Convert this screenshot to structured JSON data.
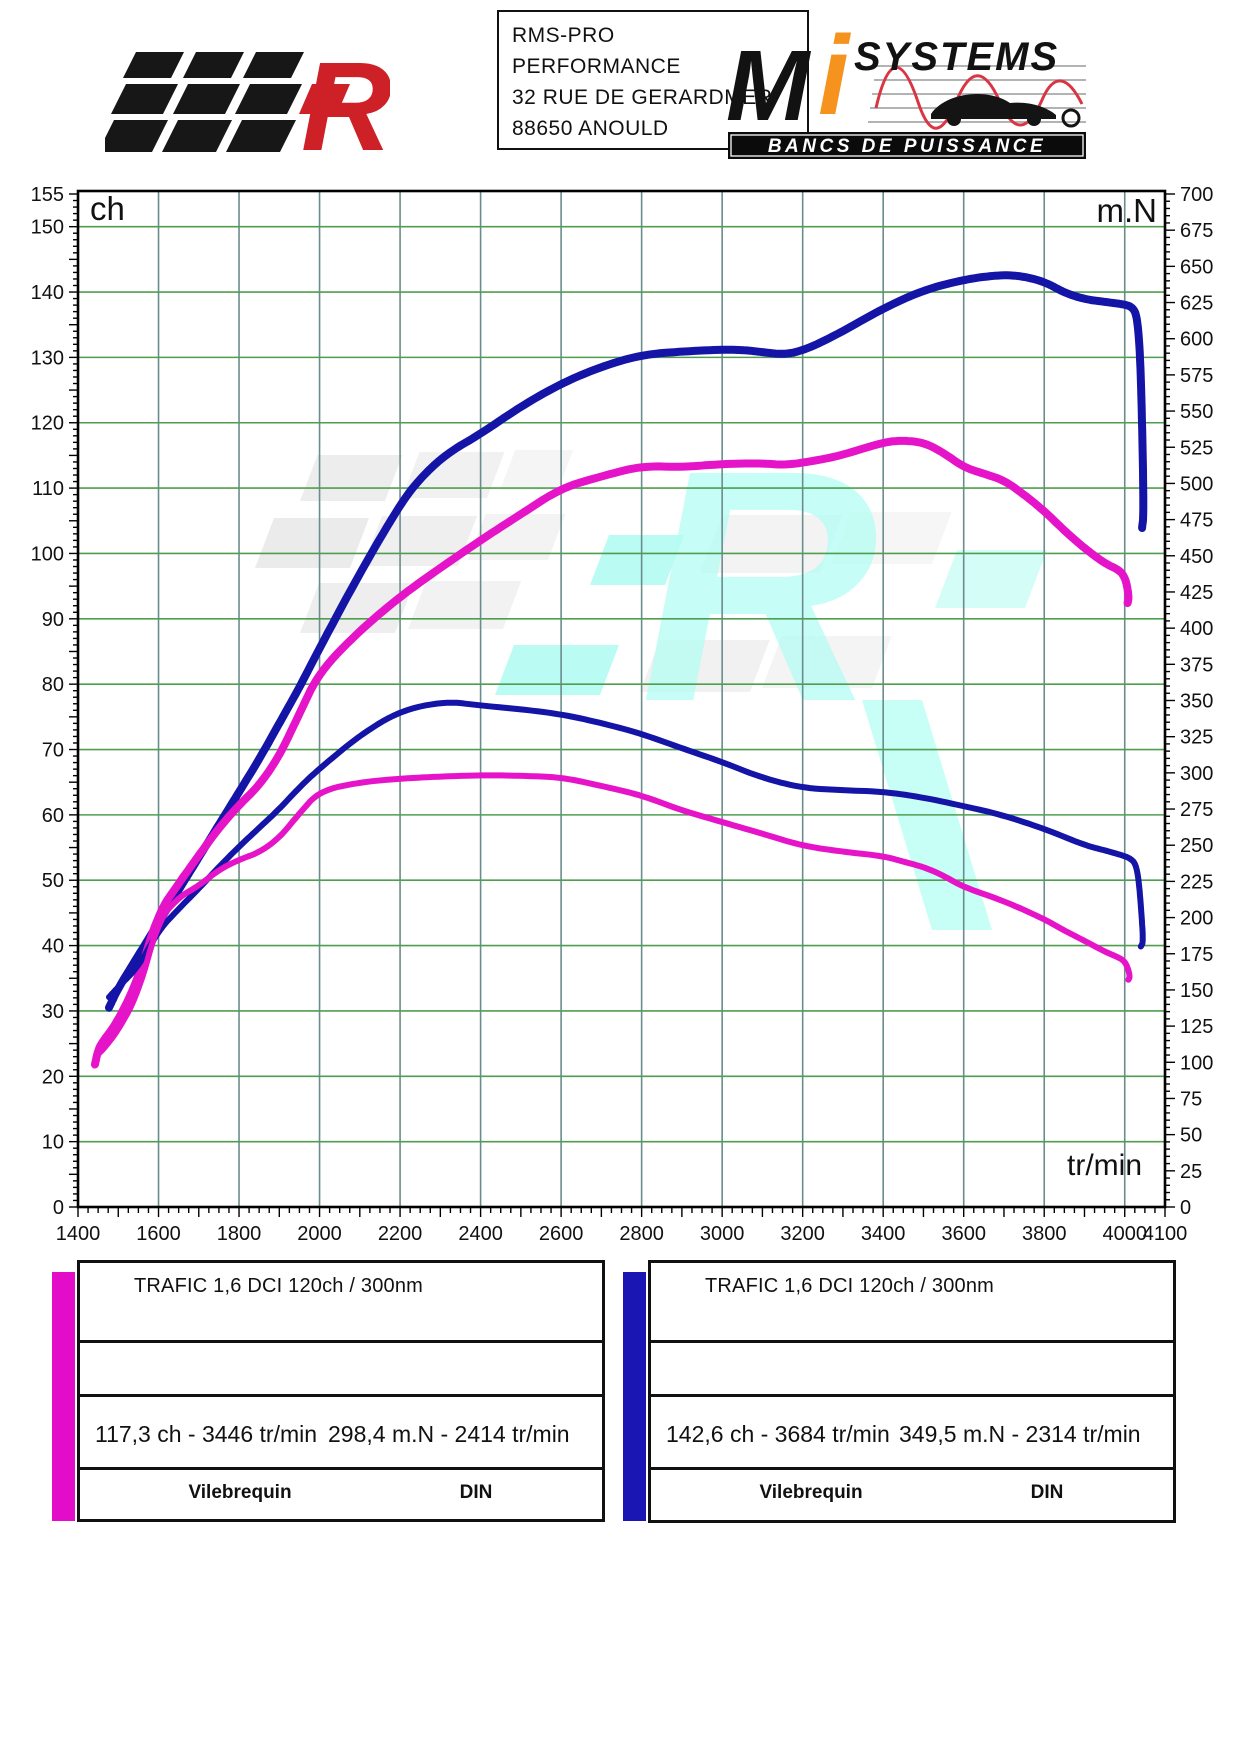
{
  "header": {
    "left_logo": {
      "letter": "R"
    },
    "shop_box": {
      "lines": [
        "RMS-PRO",
        "PERFORMANCE",
        "32 RUE DE GERARDMER",
        "88650 ANOULD"
      ]
    },
    "right_logo": {
      "m": "M",
      "i": "i",
      "systems": "SYSTEMS",
      "banner": "BANCS DE PUISSANCE"
    }
  },
  "chart_data": {
    "type": "line",
    "x_axis": {
      "label": "tr/min",
      "min": 1400,
      "max": 4100,
      "major_ticks": [
        1400,
        1600,
        1800,
        2000,
        2200,
        2400,
        2600,
        2800,
        3000,
        3200,
        3400,
        3600,
        3800,
        4000,
        4100
      ],
      "minor_step": 25,
      "gridline_step": 200
    },
    "y_left": {
      "label": "ch",
      "min": 0,
      "max": 155,
      "labeled_ticks": [
        0,
        10,
        20,
        30,
        40,
        50,
        60,
        70,
        80,
        90,
        100,
        110,
        120,
        130,
        140,
        150,
        155
      ],
      "minor_step": 1,
      "gridline_step": 10
    },
    "y_right": {
      "label": "m.N",
      "min": 0,
      "max": 700,
      "labeled_ticks": [
        0,
        25,
        50,
        75,
        100,
        125,
        150,
        175,
        200,
        225,
        250,
        275,
        300,
        325,
        350,
        375,
        400,
        425,
        450,
        475,
        500,
        525,
        550,
        575,
        600,
        625,
        650,
        675,
        700
      ],
      "minor_step": 5
    },
    "grid": {
      "h_color": "#4f9e4f",
      "v_color": "#6b8c8c",
      "frame_color": "#000000"
    },
    "legend_position": "none",
    "series": [
      {
        "name": "power-run-blue",
        "unit": "ch",
        "axis": "left",
        "color": "#1414A6",
        "width": 8,
        "peak": "142,6 ch - 3684 tr/min",
        "points": [
          [
            1477,
            30.5
          ],
          [
            1500,
            33.5
          ],
          [
            1550,
            38.5
          ],
          [
            1600,
            43.5
          ],
          [
            1650,
            48.5
          ],
          [
            1700,
            53.5
          ],
          [
            1750,
            58.5
          ],
          [
            1800,
            63.5
          ],
          [
            1850,
            68.5
          ],
          [
            1900,
            74
          ],
          [
            1950,
            79.5
          ],
          [
            2000,
            85.5
          ],
          [
            2100,
            97
          ],
          [
            2200,
            107.5
          ],
          [
            2250,
            111.5
          ],
          [
            2314,
            115.2
          ],
          [
            2400,
            118.3
          ],
          [
            2500,
            122.5
          ],
          [
            2600,
            126
          ],
          [
            2700,
            128.6
          ],
          [
            2800,
            130.4
          ],
          [
            2900,
            130.9
          ],
          [
            3000,
            131.2
          ],
          [
            3060,
            131.1
          ],
          [
            3100,
            130.8
          ],
          [
            3160,
            130.4
          ],
          [
            3220,
            131.5
          ],
          [
            3300,
            134
          ],
          [
            3400,
            137.5
          ],
          [
            3500,
            140.3
          ],
          [
            3600,
            141.9
          ],
          [
            3684,
            142.6
          ],
          [
            3740,
            142.5
          ],
          [
            3800,
            141.6
          ],
          [
            3850,
            139.9
          ],
          [
            3900,
            138.9
          ],
          [
            3950,
            138.5
          ],
          [
            4000,
            138.1
          ],
          [
            4018,
            137.7
          ],
          [
            4030,
            136.5
          ],
          [
            4038,
            131
          ],
          [
            4044,
            118
          ],
          [
            4047,
            106
          ],
          [
            4043,
            103.9
          ]
        ]
      },
      {
        "name": "power-run-magenta",
        "unit": "ch",
        "axis": "left",
        "color": "#E514C9",
        "width": 8,
        "peak": "117,3 ch - 3446 tr/min",
        "points": [
          [
            1442,
            21.8
          ],
          [
            1450,
            24
          ],
          [
            1460,
            25.2
          ],
          [
            1500,
            28.5
          ],
          [
            1550,
            35
          ],
          [
            1600,
            45
          ],
          [
            1650,
            49.5
          ],
          [
            1700,
            53.8
          ],
          [
            1750,
            58
          ],
          [
            1800,
            61.5
          ],
          [
            1850,
            64.5
          ],
          [
            1900,
            69
          ],
          [
            1950,
            75.5
          ],
          [
            2000,
            81.9
          ],
          [
            2100,
            88.2
          ],
          [
            2200,
            93.4
          ],
          [
            2300,
            97.8
          ],
          [
            2414,
            102.6
          ],
          [
            2500,
            106
          ],
          [
            2600,
            110
          ],
          [
            2700,
            111.8
          ],
          [
            2800,
            113.4
          ],
          [
            2900,
            113.2
          ],
          [
            3000,
            113.7
          ],
          [
            3100,
            113.8
          ],
          [
            3160,
            113.5
          ],
          [
            3250,
            114.4
          ],
          [
            3300,
            115.1
          ],
          [
            3400,
            117
          ],
          [
            3446,
            117.3
          ],
          [
            3500,
            117
          ],
          [
            3550,
            115.4
          ],
          [
            3600,
            113.2
          ],
          [
            3650,
            112.2
          ],
          [
            3700,
            111.2
          ],
          [
            3750,
            109
          ],
          [
            3800,
            106.5
          ],
          [
            3850,
            103.5
          ],
          [
            3900,
            100.8
          ],
          [
            3950,
            98.5
          ],
          [
            3988,
            97.4
          ],
          [
            4000,
            96.3
          ],
          [
            4006,
            95
          ],
          [
            4010,
            93.2
          ],
          [
            4007,
            92.4
          ]
        ]
      },
      {
        "name": "torque-run-blue",
        "unit": "m.N",
        "axis": "right",
        "color": "#1414A6",
        "width": 6,
        "peak": "349,5 m.N - 2314 tr/min",
        "points": [
          [
            1477,
            145
          ],
          [
            1500,
            152
          ],
          [
            1550,
            166
          ],
          [
            1600,
            191
          ],
          [
            1650,
            206
          ],
          [
            1700,
            220
          ],
          [
            1750,
            235
          ],
          [
            1800,
            249
          ],
          [
            1850,
            262
          ],
          [
            1900,
            275
          ],
          [
            1950,
            290
          ],
          [
            2000,
            303
          ],
          [
            2100,
            326
          ],
          [
            2200,
            343
          ],
          [
            2314,
            349.5
          ],
          [
            2400,
            346.5
          ],
          [
            2500,
            344
          ],
          [
            2600,
            340.5
          ],
          [
            2700,
            334.5
          ],
          [
            2800,
            327
          ],
          [
            2900,
            317
          ],
          [
            3000,
            307.5
          ],
          [
            3100,
            296.5
          ],
          [
            3200,
            289.5
          ],
          [
            3300,
            288
          ],
          [
            3400,
            287
          ],
          [
            3500,
            283
          ],
          [
            3600,
            277
          ],
          [
            3684,
            271.8
          ],
          [
            3800,
            261.5
          ],
          [
            3900,
            250
          ],
          [
            3950,
            246.5
          ],
          [
            4000,
            242.5
          ],
          [
            4015,
            240.5
          ],
          [
            4026,
            237.5
          ],
          [
            4034,
            228
          ],
          [
            4041,
            205
          ],
          [
            4046,
            183
          ],
          [
            4040,
            180
          ]
        ]
      },
      {
        "name": "torque-run-magenta",
        "unit": "m.N",
        "axis": "right",
        "color": "#E514C9",
        "width": 6,
        "peak": "298,4 m.N - 2414 tr/min",
        "points": [
          [
            1442,
            99
          ],
          [
            1450,
            106
          ],
          [
            1460,
            108
          ],
          [
            1500,
            122
          ],
          [
            1550,
            148
          ],
          [
            1600,
            198
          ],
          [
            1650,
            214
          ],
          [
            1700,
            222
          ],
          [
            1750,
            233
          ],
          [
            1800,
            240
          ],
          [
            1850,
            245
          ],
          [
            1900,
            255
          ],
          [
            1950,
            272
          ],
          [
            2000,
            287.5
          ],
          [
            2100,
            293.5
          ],
          [
            2200,
            296
          ],
          [
            2300,
            297.5
          ],
          [
            2414,
            298.4
          ],
          [
            2500,
            298
          ],
          [
            2600,
            297
          ],
          [
            2700,
            291
          ],
          [
            2800,
            284.5
          ],
          [
            2900,
            274
          ],
          [
            3000,
            266
          ],
          [
            3100,
            258
          ],
          [
            3200,
            249.5
          ],
          [
            3300,
            245.5
          ],
          [
            3400,
            242.5
          ],
          [
            3446,
            239
          ],
          [
            3500,
            235
          ],
          [
            3550,
            229
          ],
          [
            3600,
            221
          ],
          [
            3700,
            211.5
          ],
          [
            3800,
            199
          ],
          [
            3850,
            191
          ],
          [
            3900,
            184
          ],
          [
            3950,
            176.5
          ],
          [
            3988,
            172
          ],
          [
            4000,
            169.5
          ],
          [
            4008,
            165
          ],
          [
            4013,
            159
          ],
          [
            4009,
            157
          ]
        ]
      }
    ]
  },
  "results": {
    "left": {
      "swatch_color": "#E30CC8",
      "title": "TRAFIC 1,6 DCI 120ch / 300nm",
      "power": "117,3 ch - 3446 tr/min",
      "torque": "298,4 m.N - 2414 tr/min",
      "footer_left": "Vilebrequin",
      "footer_right": "DIN"
    },
    "right": {
      "swatch_color": "#1A16B4",
      "title": "TRAFIC 1,6 DCI 120ch / 300nm",
      "power": "142,6 ch - 3684 tr/min",
      "torque": "349,5 m.N - 2314 tr/min",
      "footer_left": "Vilebrequin",
      "footer_right": "DIN"
    }
  }
}
